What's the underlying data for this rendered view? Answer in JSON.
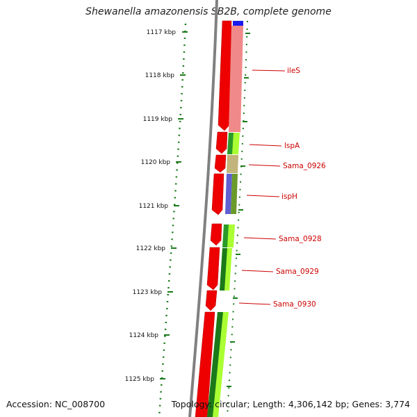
{
  "title": "Shewanella amazonensis SB2B, complete genome",
  "accession": "Accession: NC_008700",
  "summary": "Topology: circular; Length: 4,306,142 bp; Genes: 3,774",
  "scale": {
    "labels": [
      "1117 kbp",
      "1118 kbp",
      "1119 kbp",
      "1120 kbp",
      "1121 kbp",
      "1122 kbp",
      "1123 kbp",
      "1124 kbp",
      "1125 kbp"
    ],
    "color": "#1a7a1a"
  },
  "genes": [
    {
      "name": "ileS",
      "color": "#cc0000"
    },
    {
      "name": "lspA",
      "color": "#cc0000"
    },
    {
      "name": "Sama_0926",
      "color": "#cc0000"
    },
    {
      "name": "ispH",
      "color": "#cc0000"
    },
    {
      "name": "Sama_0928",
      "color": "#cc0000"
    },
    {
      "name": "Sama_0929",
      "color": "#cc0000"
    },
    {
      "name": "Sama_0930",
      "color": "#cc0000"
    }
  ],
  "colors": {
    "backbone": "#808080",
    "cds": "#ee0000",
    "salmon": "#f08a8a",
    "green_dark": "#2a9a2a",
    "green_light": "#aaff33",
    "khaki": "#c2b47a",
    "blue": "#6060d0"
  }
}
